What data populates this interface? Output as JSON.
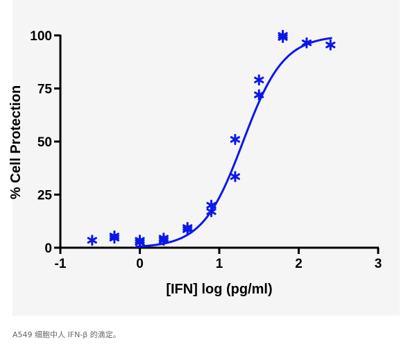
{
  "chart_data": {
    "type": "scatter",
    "xlabel": "[IFN] log (pg/ml)",
    "ylabel": "% Cell Protection",
    "xlim": [
      -1,
      3
    ],
    "ylim": [
      0,
      100
    ],
    "x_ticks": [
      "-1",
      "0",
      "1",
      "2",
      "3"
    ],
    "y_ticks": [
      "0",
      "25",
      "50",
      "75",
      "100"
    ],
    "grid": false,
    "legend": "none",
    "points": {
      "x": [
        -0.6,
        -0.32,
        -0.32,
        0.0,
        0.0,
        0.3,
        0.3,
        0.6,
        0.6,
        0.9,
        0.9,
        1.2,
        1.2,
        1.5,
        1.5,
        1.8,
        1.8,
        2.1,
        2.4
      ],
      "y": [
        3.5,
        5.5,
        4.5,
        3.5,
        2.5,
        4.5,
        3.5,
        9.5,
        8.5,
        20,
        17,
        51,
        33.5,
        79,
        72,
        100,
        99,
        96.5,
        95.5
      ]
    },
    "fit": {
      "bottom": 0,
      "top": 100,
      "log_ec50": 1.3,
      "hill": 1.7,
      "x_range": [
        -0.05,
        2.42
      ]
    },
    "colors": {
      "series": "#0a17ee",
      "axes": "#000000"
    }
  },
  "caption": "A549 细胞中人 IFN-β 的滴定。"
}
